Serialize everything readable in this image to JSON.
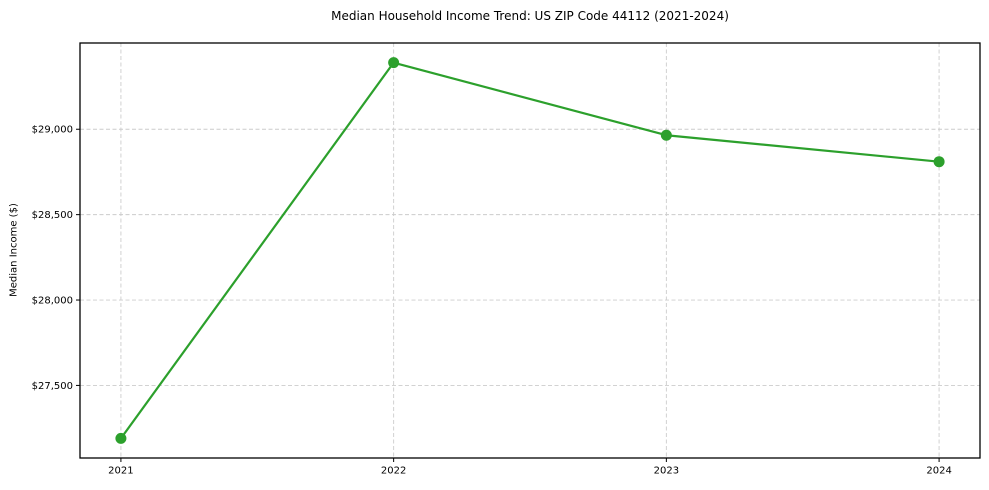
{
  "figure": {
    "background": "#ffffff",
    "text_color": "#000000"
  },
  "chart_data": {
    "type": "line",
    "title": "Median Household Income Trend: US ZIP Code 44112 (2021-2024)",
    "xlabel": "",
    "ylabel": "Median Income ($)",
    "x": [
      2021,
      2022,
      2023,
      2024
    ],
    "values": [
      27190,
      29390,
      28965,
      28810
    ],
    "xlim": [
      2020.85,
      2024.15
    ],
    "ylim": [
      27075,
      29505
    ],
    "xticks": {
      "values": [
        2021,
        2022,
        2023,
        2024
      ],
      "labels": [
        "2021",
        "2022",
        "2023",
        "2024"
      ]
    },
    "yticks": {
      "values": [
        27500,
        28000,
        28500,
        29000
      ],
      "labels": [
        "$27,500",
        "$28,000",
        "$28,500",
        "$29,000"
      ]
    },
    "grid": {
      "show": true,
      "style": "dashed",
      "color": "#cccccc"
    },
    "legend": {
      "show": false
    },
    "line_color": "#2ca02c",
    "line_width": 2.2,
    "marker": {
      "shape": "circle",
      "color": "#2ca02c",
      "radius": 5.5
    },
    "spine_color": "#000000"
  }
}
